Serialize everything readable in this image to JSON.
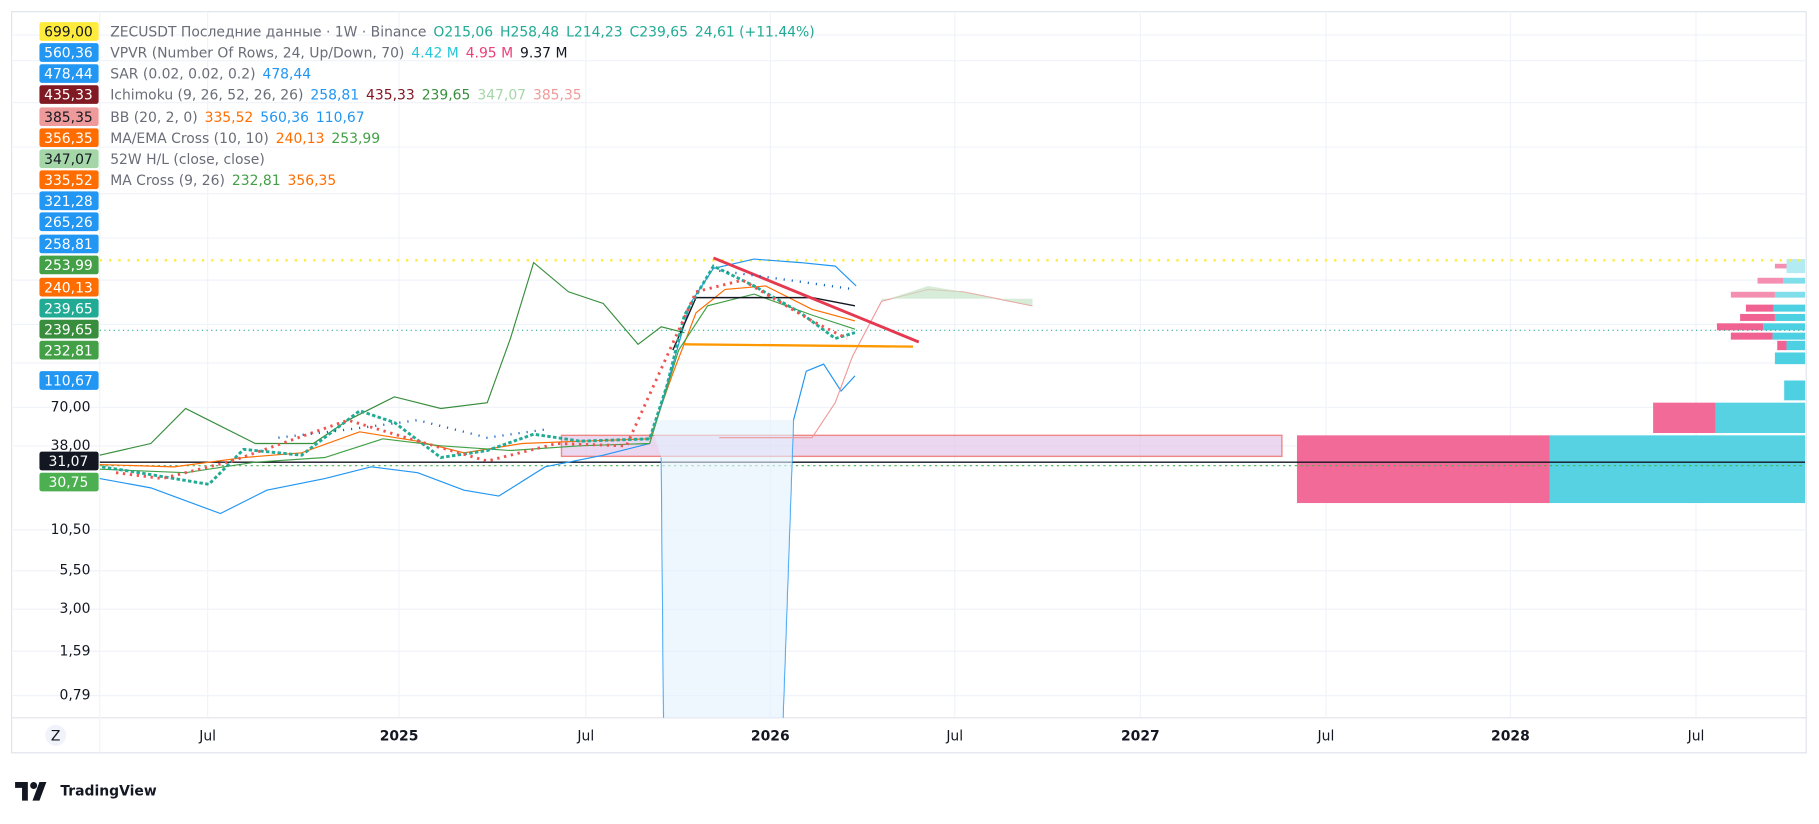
{
  "legend": [
    {
      "name": "ZECUSDT Последние данные · 1W · Binance",
      "values": [
        "O215,06",
        "H258,48",
        "L214,23",
        "C239,65",
        "24,61 (+11.44%)"
      ],
      "colors": [
        "#22ab94",
        "#22ab94",
        "#22ab94",
        "#22ab94",
        "#22ab94"
      ]
    },
    {
      "name": "VPVR (Number Of Rows, 24, Up/Down, 70)",
      "values": [
        "4.42 M",
        "4.95 M",
        "9.37 M"
      ],
      "colors": [
        "#26c6da",
        "#ec407a",
        "#131722"
      ]
    },
    {
      "name": "SAR (0.02, 0.02, 0.2)",
      "values": [
        "478,44"
      ],
      "colors": [
        "#2196f3"
      ]
    },
    {
      "name": "Ichimoku (9, 26, 52, 26, 26)",
      "values": [
        "258,81",
        "435,33",
        "239,65",
        "347,07",
        "385,35"
      ],
      "colors": [
        "#2196f3",
        "#801922",
        "#388e3c",
        "#a5d6a7",
        "#ef9a9a"
      ]
    },
    {
      "name": "BB (20, 2, 0)",
      "values": [
        "335,52",
        "560,36",
        "110,67"
      ],
      "colors": [
        "#ff6d00",
        "#2196f3",
        "#2196f3"
      ]
    },
    {
      "name": "MA/EMA Cross (10, 10)",
      "values": [
        "240,13",
        "253,99"
      ],
      "colors": [
        "#ff6d00",
        "#43a047"
      ]
    },
    {
      "name": "52W H/L (close, close)",
      "values": [],
      "colors": []
    },
    {
      "name": "MA Cross (9, 26)",
      "values": [
        "232,81",
        "356,35"
      ],
      "colors": [
        "#43a047",
        "#ff6d00"
      ]
    }
  ],
  "price_badges": [
    {
      "label": "699,00",
      "color": "#ffeb3b",
      "text_color": "#131722"
    },
    {
      "label": "560,36",
      "color": "#2196f3",
      "text_color": "#ffffff"
    },
    {
      "label": "478,44",
      "color": "#2196f3",
      "text_color": "#ffffff"
    },
    {
      "label": "435,33",
      "color": "#801922",
      "text_color": "#ffffff"
    },
    {
      "label": "385,35",
      "color": "#ef9a9a",
      "text_color": "#131722"
    },
    {
      "label": "356,35",
      "color": "#ff6d00",
      "text_color": "#ffffff"
    },
    {
      "label": "347,07",
      "color": "#a5d6a7",
      "text_color": "#131722"
    },
    {
      "label": "335,52",
      "color": "#ff6d00",
      "text_color": "#ffffff"
    },
    {
      "label": "321,28",
      "color": "#2196f3",
      "text_color": "#ffffff"
    },
    {
      "label": "265,26",
      "color": "#2196f3",
      "text_color": "#ffffff"
    },
    {
      "label": "258,81",
      "color": "#2196f3",
      "text_color": "#ffffff"
    },
    {
      "label": "253,99",
      "color": "#43a047",
      "text_color": "#ffffff"
    },
    {
      "label": "240,13",
      "color": "#ff6d00",
      "text_color": "#ffffff"
    },
    {
      "label": "239,65",
      "color": "#22ab94",
      "text_color": "#ffffff"
    },
    {
      "label": "239,65",
      "color": "#388e3c",
      "text_color": "#ffffff"
    },
    {
      "label": "232,81",
      "color": "#43a047",
      "text_color": "#ffffff"
    },
    {
      "label": "110,67",
      "color": "#2196f3",
      "text_color": "#ffffff"
    },
    {
      "label": "31,07",
      "color": "#131722",
      "text_color": "#ffffff"
    },
    {
      "label": "30,75",
      "color": "#4caf50",
      "text_color": "#ffffff"
    }
  ],
  "y_axis_labels": [
    "70,00",
    "38,00",
    "10,50",
    "5,50",
    "3,00",
    "1,59",
    "0,79"
  ],
  "x_axis_labels": [
    "Jul",
    "2025",
    "Jul",
    "2026",
    "Jul",
    "2027",
    "Jul",
    "2028",
    "Jul"
  ],
  "timezone_button": "Z",
  "brand": "TradingView"
}
